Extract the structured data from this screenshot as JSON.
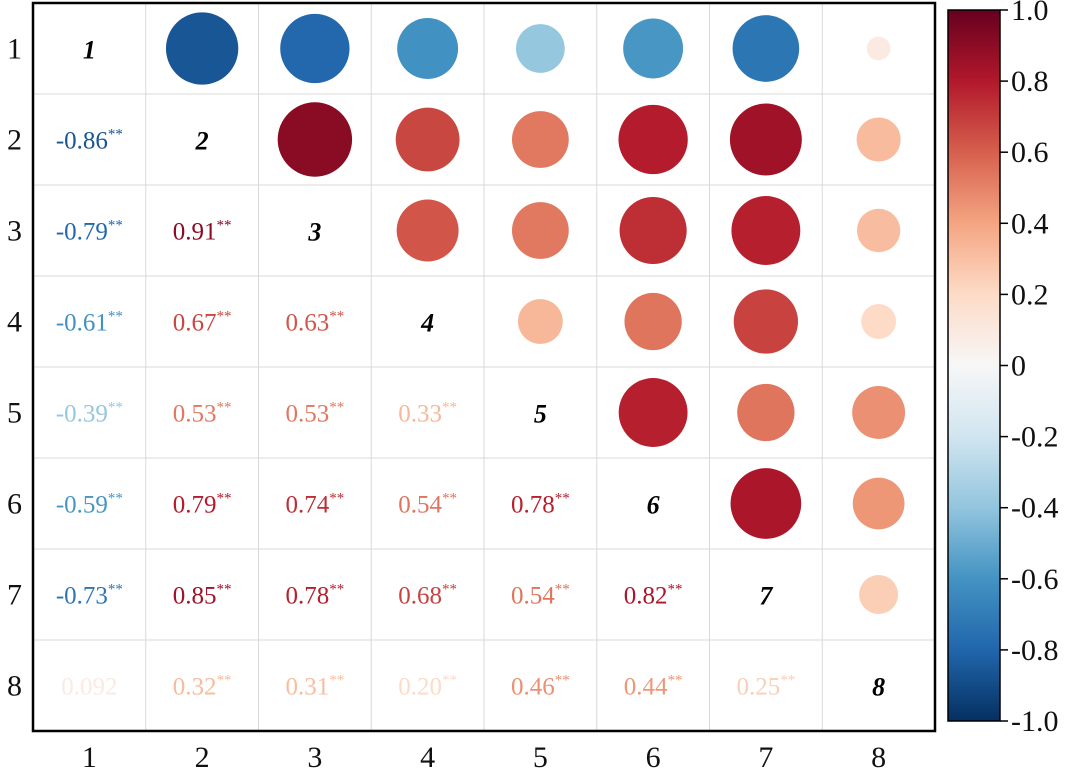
{
  "chart_data": {
    "type": "heatmap",
    "variables": [
      "1",
      "2",
      "3",
      "4",
      "5",
      "6",
      "7",
      "8"
    ],
    "matrix": [
      [
        1.0,
        -0.86,
        -0.79,
        -0.61,
        -0.39,
        -0.59,
        -0.73,
        0.092
      ],
      [
        -0.86,
        1.0,
        0.91,
        0.67,
        0.53,
        0.79,
        0.85,
        0.32
      ],
      [
        -0.79,
        0.91,
        1.0,
        0.63,
        0.53,
        0.74,
        0.78,
        0.31
      ],
      [
        -0.61,
        0.67,
        0.63,
        1.0,
        0.33,
        0.54,
        0.68,
        0.2
      ],
      [
        -0.39,
        0.53,
        0.53,
        0.33,
        1.0,
        0.78,
        0.54,
        0.46
      ],
      [
        -0.59,
        0.79,
        0.74,
        0.54,
        0.78,
        1.0,
        0.82,
        0.44
      ],
      [
        -0.73,
        0.85,
        0.78,
        0.68,
        0.54,
        0.82,
        1.0,
        0.25
      ],
      [
        0.092,
        0.32,
        0.31,
        0.2,
        0.46,
        0.44,
        0.25,
        1.0
      ]
    ],
    "lower_labels": [
      [
        "1",
        "",
        "",
        "",
        "",
        "",
        "",
        ""
      ],
      [
        "-0.86",
        "2",
        "",
        "",
        "",
        "",
        "",
        ""
      ],
      [
        "-0.79",
        "0.91",
        "3",
        "",
        "",
        "",
        "",
        ""
      ],
      [
        "-0.61",
        "0.67",
        "0.63",
        "4",
        "",
        "",
        "",
        ""
      ],
      [
        "-0.39",
        "0.53",
        "0.53",
        "0.33",
        "5",
        "",
        "",
        ""
      ],
      [
        "-0.59",
        "0.79",
        "0.74",
        "0.54",
        "0.78",
        "6",
        "",
        ""
      ],
      [
        "-0.73",
        "0.85",
        "0.78",
        "0.68",
        "0.54",
        "0.82",
        "7",
        ""
      ],
      [
        "0.092",
        "0.32",
        "0.31",
        "0.20",
        "0.46",
        "0.44",
        "0.25",
        "8"
      ]
    ],
    "significance": [
      [
        "",
        "",
        "",
        "",
        "",
        "",
        "",
        ""
      ],
      [
        "**",
        "",
        "",
        "",
        "",
        "",
        "",
        ""
      ],
      [
        "**",
        "**",
        "",
        "",
        "",
        "",
        "",
        ""
      ],
      [
        "**",
        "**",
        "**",
        "",
        "",
        "",
        "",
        ""
      ],
      [
        "**",
        "**",
        "**",
        "**",
        "",
        "",
        "",
        ""
      ],
      [
        "**",
        "**",
        "**",
        "**",
        "**",
        "",
        "",
        ""
      ],
      [
        "**",
        "**",
        "**",
        "**",
        "**",
        "**",
        "",
        ""
      ],
      [
        "",
        "**",
        "**",
        "**",
        "**",
        "**",
        "**",
        ""
      ]
    ],
    "x_tick_labels": [
      "1",
      "2",
      "3",
      "4",
      "5",
      "6",
      "7",
      "8"
    ],
    "y_tick_labels": [
      "1",
      "2",
      "3",
      "4",
      "5",
      "6",
      "7",
      "8"
    ],
    "upper_triangle": "circles sized and colored by coefficient",
    "lower_triangle": "coefficient values with significance stars",
    "diagonal": "variable index in bold italic",
    "colorbar": {
      "range": [
        -1.0,
        1.0
      ],
      "ticks": [
        -1.0,
        -0.8,
        -0.6,
        -0.4,
        -0.2,
        0,
        0.2,
        0.4,
        0.6,
        0.8,
        1.0
      ],
      "tick_labels": [
        "-1.0",
        "-0.8",
        "-0.6",
        "-0.4",
        "-0.2",
        "0",
        "0.2",
        "0.4",
        "0.6",
        "0.8",
        "1.0"
      ],
      "placement": "right",
      "colormap": [
        "#053061",
        "#2166ac",
        "#4393c3",
        "#92c5de",
        "#d1e5f0",
        "#f7f7f7",
        "#fddbc7",
        "#f4a582",
        "#d6604d",
        "#b2182b",
        "#67001f"
      ]
    },
    "grid": true
  }
}
